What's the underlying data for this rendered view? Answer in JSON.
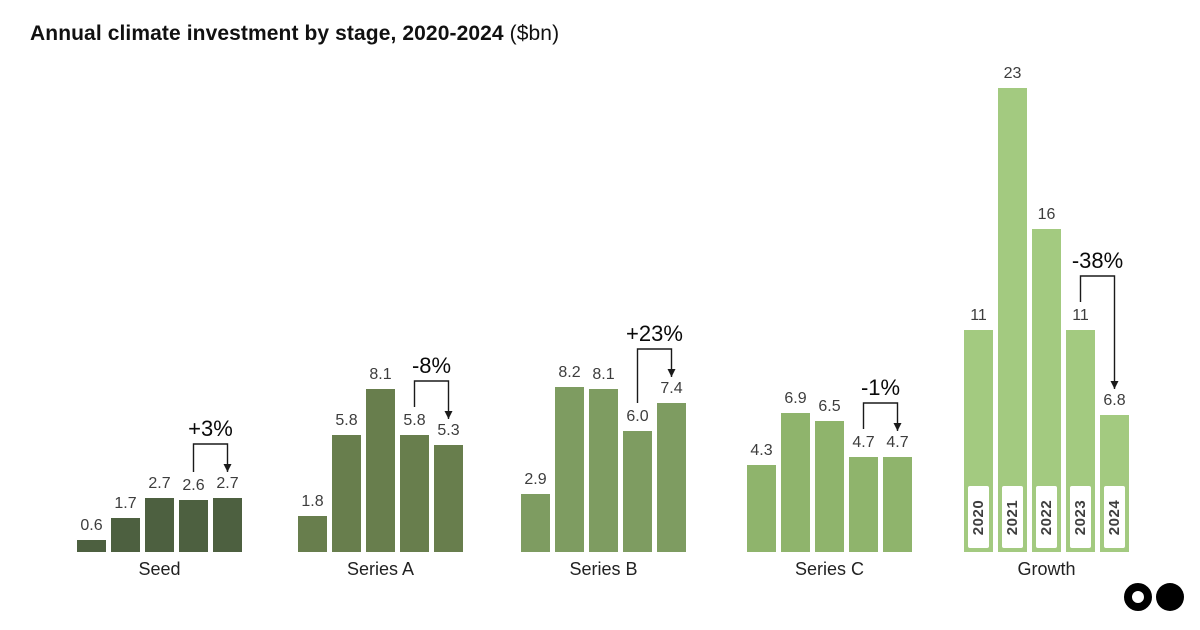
{
  "header": {
    "title_bold": "Annual climate investment by stage, 2020-2024",
    "title_units": " ($bn)"
  },
  "chart_data": {
    "type": "bar",
    "title": "Annual climate investment by stage, 2020-2024 ($bn)",
    "unit": "$bn",
    "categories": [
      "2020",
      "2021",
      "2022",
      "2023",
      "2024"
    ],
    "ylim": [
      0,
      23
    ],
    "grid": false,
    "legend": "none",
    "groups": [
      {
        "name": "Seed",
        "color": "#4d6040",
        "values": [
          0.6,
          1.7,
          2.7,
          2.6,
          2.7
        ],
        "labels": [
          "0.6",
          "1.7",
          "2.7",
          "2.6",
          "2.7"
        ],
        "annotation": "+3%",
        "show_year_boxes": false
      },
      {
        "name": "Series A",
        "color": "#687e4d",
        "values": [
          1.8,
          5.8,
          8.1,
          5.8,
          5.3
        ],
        "labels": [
          "1.8",
          "5.8",
          "8.1",
          "5.8",
          "5.3"
        ],
        "annotation": "-8%",
        "show_year_boxes": false
      },
      {
        "name": "Series B",
        "color": "#7e9c61",
        "values": [
          2.9,
          8.2,
          8.1,
          6.0,
          7.4
        ],
        "labels": [
          "2.9",
          "8.2",
          "8.1",
          "6.0",
          "7.4"
        ],
        "annotation": "+23%",
        "show_year_boxes": false
      },
      {
        "name": "Series C",
        "color": "#8fb46c",
        "values": [
          4.3,
          6.9,
          6.5,
          4.7,
          4.7
        ],
        "labels": [
          "4.3",
          "6.9",
          "6.5",
          "4.7",
          "4.7"
        ],
        "annotation": "-1%",
        "show_year_boxes": false
      },
      {
        "name": "Growth",
        "color": "#a3ca80",
        "values": [
          11,
          23,
          16,
          11,
          6.8
        ],
        "labels": [
          "11",
          "23",
          "16",
          "11",
          "6.8"
        ],
        "annotation": "-38%",
        "show_year_boxes": true
      }
    ],
    "annotation_span": {
      "from_category": "2023",
      "to_category": "2024"
    }
  },
  "logo": {
    "icons": [
      "circle-outline-icon",
      "circle-filled-icon"
    ]
  }
}
